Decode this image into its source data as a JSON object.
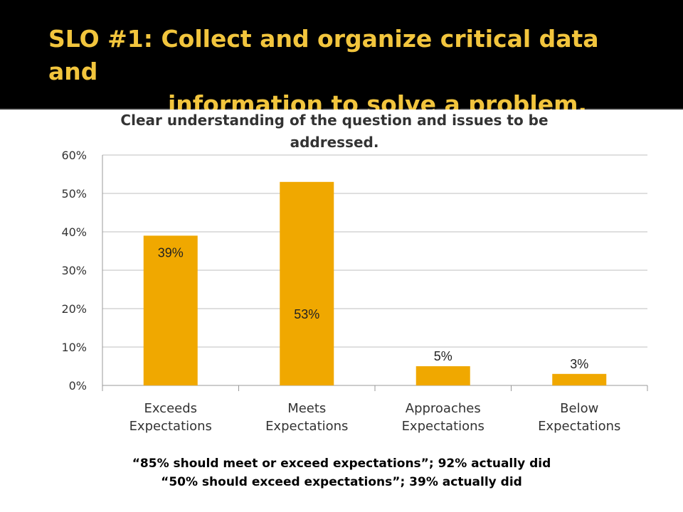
{
  "slide": {
    "title_line1": "SLO #1: Collect and organize critical data and",
    "title_line2": "information to solve a problem."
  },
  "chart_data": {
    "type": "bar",
    "title_line1": "Clear understanding of the question and issues to be",
    "title_line2": "addressed.",
    "categories": [
      [
        "Exceeds",
        "Expectations"
      ],
      [
        "Meets",
        "Expectations"
      ],
      [
        "Approaches",
        "Expectations"
      ],
      [
        "Below",
        "Expectations"
      ]
    ],
    "values": [
      39,
      53,
      5,
      3
    ],
    "data_labels": [
      "39%",
      "53%",
      "5%",
      "3%"
    ],
    "ylim": [
      0,
      60
    ],
    "yticks": [
      "0%",
      "10%",
      "20%",
      "30%",
      "40%",
      "50%",
      "60%"
    ],
    "grid": true,
    "legend": "none",
    "bar_color": "#f0a800"
  },
  "notes": {
    "line1": "“85% should meet or exceed expectations”; 92% actually did",
    "line2": "“50% should exceed expectations”; 39% actually did"
  },
  "colors": {
    "title": "#f2c53d",
    "background": "#000000",
    "bars": "#f0a800"
  }
}
